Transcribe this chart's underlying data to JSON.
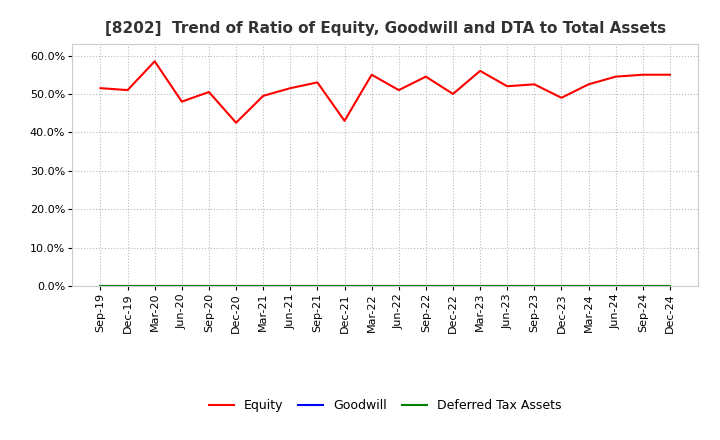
{
  "title": "[8202]  Trend of Ratio of Equity, Goodwill and DTA to Total Assets",
  "x_labels": [
    "Sep-19",
    "Dec-19",
    "Mar-20",
    "Jun-20",
    "Sep-20",
    "Dec-20",
    "Mar-21",
    "Jun-21",
    "Sep-21",
    "Dec-21",
    "Mar-22",
    "Jun-22",
    "Sep-22",
    "Dec-22",
    "Mar-23",
    "Jun-23",
    "Sep-23",
    "Dec-23",
    "Mar-24",
    "Jun-24",
    "Sep-24",
    "Dec-24"
  ],
  "equity": [
    51.5,
    51.0,
    58.5,
    48.0,
    50.5,
    42.5,
    49.5,
    51.5,
    53.0,
    43.0,
    55.0,
    51.0,
    54.5,
    50.0,
    56.0,
    52.0,
    52.5,
    49.0,
    52.5,
    54.5,
    55.0,
    55.0
  ],
  "goodwill": [
    0.0,
    0.0,
    0.0,
    0.0,
    0.0,
    0.0,
    0.0,
    0.0,
    0.0,
    0.0,
    0.0,
    0.0,
    0.0,
    0.0,
    0.0,
    0.0,
    0.0,
    0.0,
    0.0,
    0.0,
    0.0,
    0.0
  ],
  "dta": [
    0.0,
    0.0,
    0.0,
    0.0,
    0.0,
    0.0,
    0.0,
    0.0,
    0.0,
    0.0,
    0.0,
    0.0,
    0.0,
    0.0,
    0.0,
    0.0,
    0.0,
    0.0,
    0.0,
    0.0,
    0.0,
    0.0
  ],
  "equity_color": "#FF0000",
  "goodwill_color": "#0000FF",
  "dta_color": "#008000",
  "ylim": [
    0.0,
    63.0
  ],
  "yticks": [
    0.0,
    10.0,
    20.0,
    30.0,
    40.0,
    50.0,
    60.0
  ],
  "background_color": "#FFFFFF",
  "plot_bg_color": "#FFFFFF",
  "grid_color": "#AAAAAA",
  "title_fontsize": 11,
  "tick_fontsize": 8,
  "legend_labels": [
    "Equity",
    "Goodwill",
    "Deferred Tax Assets"
  ]
}
